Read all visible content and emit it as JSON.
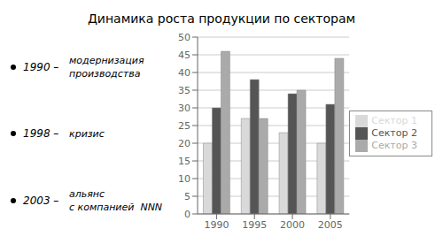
{
  "chart_data": {
    "type": "bar",
    "title": "Динамика роста продукции по секторам",
    "categories": [
      "1990",
      "1995",
      "2000",
      "2005"
    ],
    "series": [
      {
        "name": "Сектор 1",
        "color": "#d9d9d9",
        "values": [
          20,
          27,
          23,
          20
        ]
      },
      {
        "name": "Сектор 2",
        "color": "#555555",
        "values": [
          30,
          38,
          34,
          31
        ]
      },
      {
        "name": "Сектор 3",
        "color": "#aaaaaa",
        "values": [
          46,
          27,
          35,
          44
        ]
      }
    ],
    "ylim": [
      0,
      50
    ],
    "yticks": [
      0,
      5,
      10,
      15,
      20,
      25,
      30,
      35,
      40,
      45,
      50
    ],
    "grid": true,
    "legend": "right",
    "annotations": [
      {
        "label": "1990 –",
        "text": "модернизация\nпроизводства"
      },
      {
        "label": "1998 –",
        "text": "кризис"
      },
      {
        "label": "2003 –",
        "text": "альянс\nс компанией  NNN"
      }
    ]
  }
}
